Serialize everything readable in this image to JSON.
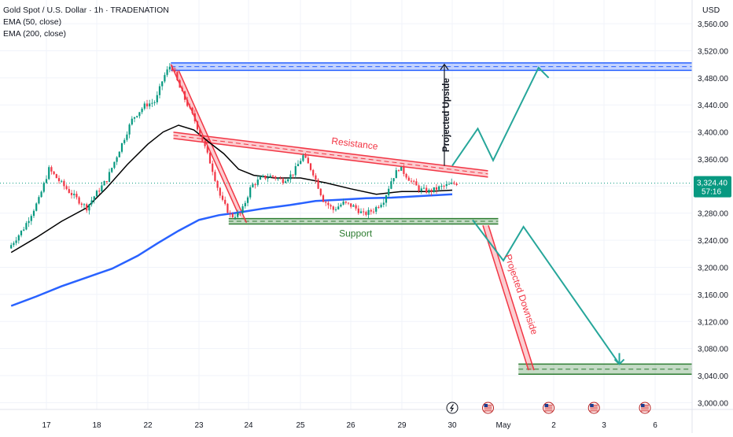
{
  "legend": {
    "symbol": "Gold Spot / U.S. Dollar · 1h · TRADENATION",
    "ema50": "EMA (50, close)",
    "ema200": "EMA (200, close)"
  },
  "currency_label": "USD",
  "colors": {
    "candle_up": "#089981",
    "candle_down": "#f23645",
    "ema50": "#000000",
    "ema200": "#2962ff",
    "resistance": "#f23645",
    "support": "#2e7d32",
    "upper_zone": "#2962ff",
    "projection_arrow": "#26a69a",
    "price_label_bg": "#089981"
  },
  "chart_data": {
    "type": "candlestick",
    "title": "Gold Spot / U.S. Dollar · 1h · TRADENATION",
    "y_axis": {
      "position": "right",
      "range": [
        2990,
        3595
      ],
      "ticks": [
        3000,
        3040,
        3080,
        3120,
        3160,
        3200,
        3240,
        3280,
        3320,
        3360,
        3400,
        3440,
        3480,
        3520,
        3560
      ],
      "tick_labels": [
        "3,000.00",
        "3,040.00",
        "3,080.00",
        "3,120.00",
        "3,160.00",
        "3,200.00",
        "3,240.00",
        "3,280.00",
        "3,320.00",
        "3,360.00",
        "3,400.00",
        "3,440.00",
        "3,480.00",
        "3,520.00",
        "3,560.00"
      ]
    },
    "x_axis": {
      "range": [
        16.3,
        6.9
      ],
      "tick_labels": [
        {
          "label": "17",
          "day": 17
        },
        {
          "label": "18",
          "day": 18
        },
        {
          "label": "22",
          "day": 22
        },
        {
          "label": "23",
          "day": 23
        },
        {
          "label": "24",
          "day": 24
        },
        {
          "label": "25",
          "day": 25
        },
        {
          "label": "26",
          "day": 26
        },
        {
          "label": "29",
          "day": 29
        },
        {
          "label": "30",
          "day": 30
        },
        {
          "label": "May",
          "day": 31
        },
        {
          "label": "2",
          "day": 32
        },
        {
          "label": "3",
          "day": 33
        },
        {
          "label": "6",
          "day": 34
        }
      ]
    },
    "current_price": {
      "value": 3324.4,
      "label": "3,324.40",
      "countdown": "57:16"
    },
    "price_path": [
      [
        16.3,
        3228
      ],
      [
        16.6,
        3258
      ],
      [
        16.9,
        3300
      ],
      [
        17.1,
        3345
      ],
      [
        17.3,
        3328
      ],
      [
        17.5,
        3312
      ],
      [
        17.7,
        3298
      ],
      [
        17.85,
        3288
      ],
      [
        18.0,
        3305
      ],
      [
        18.25,
        3330
      ],
      [
        18.5,
        3375
      ],
      [
        18.75,
        3420
      ],
      [
        19.0,
        3440
      ],
      [
        19.2,
        3445
      ],
      [
        19.35,
        3480
      ],
      [
        19.5,
        3500
      ],
      [
        19.7,
        3460
      ],
      [
        19.95,
        3420
      ],
      [
        20.1,
        3392
      ],
      [
        20.3,
        3350
      ],
      [
        20.5,
        3300
      ],
      [
        20.7,
        3275
      ],
      [
        20.9,
        3280
      ],
      [
        21.1,
        3320
      ],
      [
        21.3,
        3332
      ],
      [
        21.5,
        3335
      ],
      [
        21.7,
        3328
      ],
      [
        21.9,
        3338
      ],
      [
        22.1,
        3365
      ],
      [
        22.3,
        3340
      ],
      [
        22.5,
        3300
      ],
      [
        22.7,
        3285
      ],
      [
        22.9,
        3295
      ],
      [
        23.1,
        3290
      ],
      [
        23.3,
        3278
      ],
      [
        23.5,
        3285
      ],
      [
        23.7,
        3300
      ],
      [
        23.85,
        3330
      ],
      [
        24.0,
        3348
      ],
      [
        24.2,
        3330
      ],
      [
        24.4,
        3315
      ],
      [
        24.6,
        3312
      ],
      [
        24.8,
        3318
      ],
      [
        25.0,
        3322
      ],
      [
        25.1,
        3324.4
      ]
    ],
    "ema50": [
      [
        16.3,
        3222
      ],
      [
        16.8,
        3244
      ],
      [
        17.3,
        3268
      ],
      [
        17.8,
        3288
      ],
      [
        18.2,
        3318
      ],
      [
        18.6,
        3352
      ],
      [
        19.0,
        3382
      ],
      [
        19.3,
        3400
      ],
      [
        19.6,
        3410
      ],
      [
        19.9,
        3403
      ],
      [
        20.2,
        3385
      ],
      [
        20.5,
        3368
      ],
      [
        20.8,
        3345
      ],
      [
        21.1,
        3336
      ],
      [
        21.5,
        3332
      ],
      [
        22.0,
        3332
      ],
      [
        22.5,
        3325
      ],
      [
        23.0,
        3316
      ],
      [
        23.5,
        3308
      ],
      [
        24.0,
        3312
      ],
      [
        24.5,
        3312
      ],
      [
        25.0,
        3314
      ]
    ],
    "ema200": [
      [
        16.3,
        3143
      ],
      [
        16.8,
        3157
      ],
      [
        17.3,
        3172
      ],
      [
        17.8,
        3185
      ],
      [
        18.3,
        3198
      ],
      [
        18.8,
        3217
      ],
      [
        19.2,
        3236
      ],
      [
        19.6,
        3254
      ],
      [
        20.0,
        3270
      ],
      [
        20.4,
        3277
      ],
      [
        20.8,
        3281
      ],
      [
        21.3,
        3287
      ],
      [
        21.8,
        3292
      ],
      [
        22.3,
        3298
      ],
      [
        22.8,
        3300
      ],
      [
        23.3,
        3302
      ],
      [
        23.8,
        3303
      ],
      [
        24.3,
        3305
      ],
      [
        25.0,
        3308
      ]
    ],
    "annotations": [
      {
        "type": "zone",
        "name": "upper-target-zone",
        "y_range": [
          3491,
          3502
        ],
        "x_range": [
          19.45,
          34.9
        ],
        "color": "#2962ff"
      },
      {
        "type": "trendline",
        "name": "resistance-line",
        "label": "Resistance",
        "from": [
          19.5,
          3395
        ],
        "to": [
          25.7,
          3338
        ],
        "color": "#f23645"
      },
      {
        "type": "zone",
        "name": "support-zone",
        "label": "Support",
        "y_range": [
          3264,
          3272
        ],
        "x_range": [
          20.6,
          25.9
        ],
        "color": "#2e7d32"
      },
      {
        "type": "zone",
        "name": "lower-target-zone",
        "y_range": [
          3042,
          3057
        ],
        "x_range": [
          26.3,
          34.9
        ],
        "color": "#2e7d32"
      },
      {
        "type": "measure",
        "name": "projected-upside",
        "label": "Projected Upside",
        "from": [
          25.0,
          3350
        ],
        "to": [
          25.0,
          3500
        ]
      },
      {
        "type": "measure",
        "name": "projected-downside",
        "label": "Projected Downside",
        "from": [
          25.6,
          3262
        ],
        "to": [
          26.5,
          3048
        ]
      },
      {
        "type": "path",
        "name": "bullish-projection",
        "points": [
          [
            25.0,
            3350
          ],
          [
            25.5,
            3405
          ],
          [
            25.8,
            3358
          ],
          [
            26.7,
            3495
          ],
          [
            26.9,
            3480
          ]
        ],
        "color": "#26a69a"
      },
      {
        "type": "path",
        "name": "bearish-projection",
        "points": [
          [
            25.4,
            3270
          ],
          [
            26.0,
            3210
          ],
          [
            26.4,
            3260
          ],
          [
            28.3,
            3057
          ]
        ],
        "color": "#26a69a"
      }
    ],
    "event_markers": [
      {
        "name": "lightning-marker",
        "glyph": "⚡",
        "day": 30
      },
      {
        "name": "us-flag-marker",
        "glyph": "",
        "day": 30.7
      },
      {
        "name": "us-flag-marker",
        "glyph": "",
        "day": 31.9
      },
      {
        "name": "us-flag-marker",
        "glyph": "",
        "day": 32.8
      },
      {
        "name": "us-flag-marker",
        "glyph": "",
        "day": 33.8
      }
    ]
  }
}
